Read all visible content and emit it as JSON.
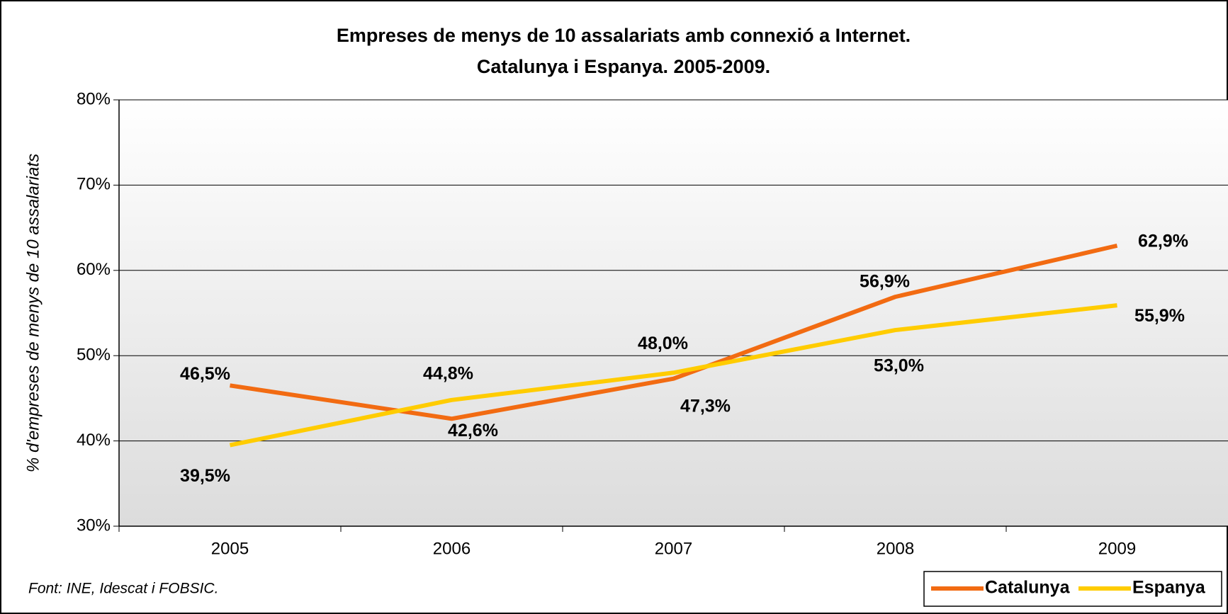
{
  "chart_data": {
    "type": "line",
    "title": [
      "Empreses de menys de 10 assalariats amb connexió a Internet.",
      "Catalunya i Espanya. 2005-2009."
    ],
    "y_label": "% d'empreses de menys de 10 assalariats",
    "source": "Font: INE, Idescat i FOBSIC.",
    "categories": [
      "2005",
      "2006",
      "2007",
      "2008",
      "2009"
    ],
    "series": [
      {
        "name": "Catalunya",
        "color": "#f26b12",
        "values": [
          46.5,
          42.6,
          47.3,
          56.9,
          62.9
        ],
        "value_labels": [
          "46,5%",
          "42,6%",
          "47,3%",
          "56,9%",
          "62,9%"
        ]
      },
      {
        "name": "Espanya",
        "color": "#ffcc00",
        "values": [
          39.5,
          44.8,
          48.0,
          53.0,
          55.9
        ],
        "value_labels": [
          "39,5%",
          "44,8%",
          "48,0%",
          "53,0%",
          "55,9%"
        ]
      }
    ],
    "ylim": [
      30,
      80
    ],
    "yticks": [
      {
        "value": 30,
        "label": "30%"
      },
      {
        "value": 40,
        "label": "40%"
      },
      {
        "value": 50,
        "label": "50%"
      },
      {
        "value": 60,
        "label": "60%"
      },
      {
        "value": 70,
        "label": "70%"
      },
      {
        "value": 80,
        "label": "80%"
      }
    ],
    "grid": true,
    "legend": "bottom-right"
  }
}
